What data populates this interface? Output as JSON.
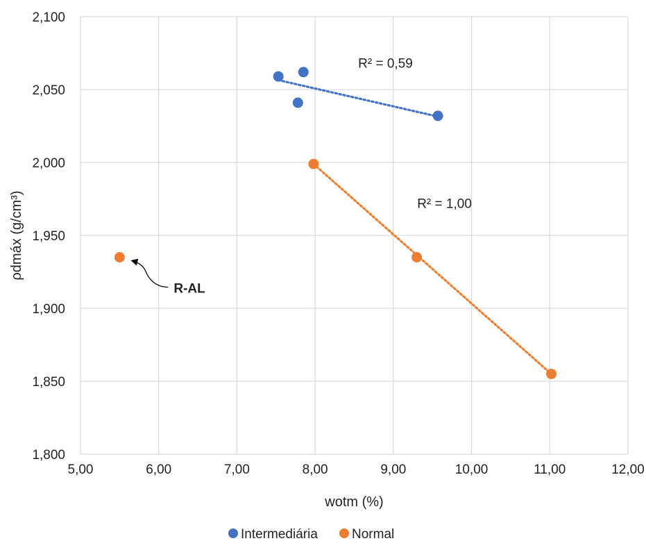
{
  "chart_data": {
    "type": "scatter",
    "xlabel": "wotm (%)",
    "ylabel": "ρdmáx (g/cm³)",
    "xlim": [
      5.0,
      12.0
    ],
    "ylim": [
      1.8,
      2.1
    ],
    "x_ticks": [
      "5,00",
      "6,00",
      "7,00",
      "8,00",
      "9,00",
      "10,00",
      "11,00",
      "12,00"
    ],
    "y_ticks": [
      "1,800",
      "1,850",
      "1,900",
      "1,950",
      "2,000",
      "2,050",
      "2,100"
    ],
    "grid": true,
    "legend_position": "bottom",
    "series": [
      {
        "name": "Intermediária",
        "color": "#4472C4",
        "points": [
          [
            7.53,
            2.059
          ],
          [
            7.85,
            2.062
          ],
          [
            7.78,
            2.041
          ],
          [
            9.57,
            2.032
          ]
        ],
        "trendline": {
          "from": [
            7.53,
            2.0565
          ],
          "to": [
            9.57,
            2.0315
          ],
          "r2_label": "R² = 0,59"
        }
      },
      {
        "name": "Normal",
        "color": "#ED7D31",
        "points": [
          [
            5.5,
            1.935
          ],
          [
            7.98,
            1.999
          ],
          [
            9.3,
            1.935
          ],
          [
            11.02,
            1.855
          ]
        ],
        "trendline": {
          "from": [
            7.98,
            1.999
          ],
          "to": [
            11.02,
            1.855
          ],
          "r2_label": "R² = 1,00"
        }
      }
    ],
    "annotations": [
      {
        "text": "R-AL",
        "x": 5.5,
        "y": 1.935
      }
    ]
  }
}
